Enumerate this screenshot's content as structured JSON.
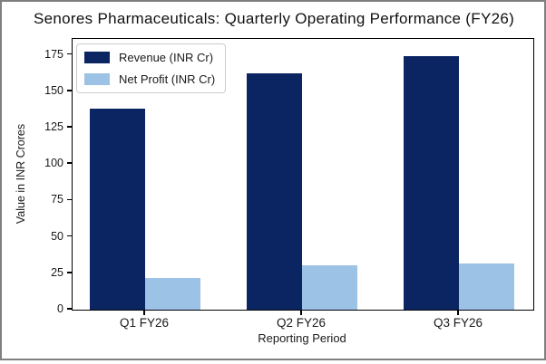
{
  "window": {
    "background": "#ffffff",
    "border_color": "#7f7f7f"
  },
  "chart_data": {
    "type": "bar",
    "title": "Senores Pharmaceuticals: Quarterly Operating Performance (FY26)",
    "xlabel": "Reporting Period",
    "ylabel": "Value in INR Crores",
    "categories": [
      "Q1 FY26",
      "Q2 FY26",
      "Q3 FY26"
    ],
    "series": [
      {
        "name": "Revenue (INR Cr)",
        "color": "#0b2563",
        "values": [
          138,
          162.5,
          174.5
        ]
      },
      {
        "name": "Net Profit (INR Cr)",
        "color": "#9cc2e6",
        "values": [
          21.8,
          30.4,
          31.6
        ]
      }
    ],
    "ylim": [
      0,
      186
    ],
    "yticks": [
      0,
      25,
      50,
      75,
      100,
      125,
      150,
      175
    ],
    "legend_position": "upper left",
    "grid": false,
    "axis_color": "#000000",
    "text_color": "#1a1a1a"
  }
}
